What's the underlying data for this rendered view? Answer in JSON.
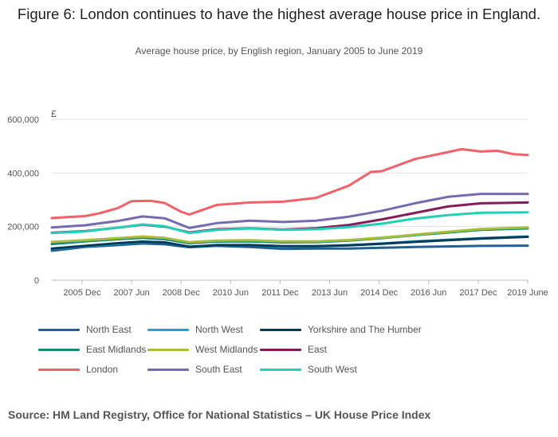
{
  "title": "Figure 6: London continues to have the highest average house price in England.",
  "subtitle": "Average house price, by English region, January 2005 to June 2019",
  "source": "Source: HM Land Registry, Office for National Statistics – UK House Price Index",
  "chart_data": {
    "type": "line",
    "y_unit_label": "£",
    "ylim": [
      0,
      600000
    ],
    "yticks": [
      0,
      200000,
      400000,
      600000
    ],
    "ytick_labels": [
      "0",
      "200,000",
      "400,000",
      "600,000"
    ],
    "xlim": [
      "2005-01",
      "2019-06"
    ],
    "xticks": [
      "2005-12",
      "2007-06",
      "2008-12",
      "2010-06",
      "2011-12",
      "2013-06",
      "2014-12",
      "2016-06",
      "2017-12",
      "2019-06"
    ],
    "xtick_labels": [
      "2005 Dec",
      "2007 Jun",
      "2008 Dec",
      "2010 Jun",
      "2011 Dec",
      "2013 Jun",
      "2014 Dec",
      "2016 Jun",
      "2017 Dec",
      "2019 June"
    ],
    "grid": true,
    "legend_position": "bottom",
    "series": [
      {
        "name": "North East",
        "color": "#206095",
        "x": [
          "2005-01",
          "2006-01",
          "2007-01",
          "2007-10",
          "2008-06",
          "2009-03",
          "2010-01",
          "2011-01",
          "2012-01",
          "2013-01",
          "2014-01",
          "2015-01",
          "2016-01",
          "2017-01",
          "2018-01",
          "2019-06"
        ],
        "values": [
          110000,
          124000,
          131000,
          137000,
          134000,
          123000,
          128000,
          124000,
          117000,
          118000,
          118000,
          121000,
          124000,
          126000,
          128000,
          129000
        ]
      },
      {
        "name": "North West",
        "color": "#27a0cc",
        "x": [
          "2005-01",
          "2006-01",
          "2007-01",
          "2007-10",
          "2008-06",
          "2009-03",
          "2010-01",
          "2011-01",
          "2012-01",
          "2013-01",
          "2014-01",
          "2015-01",
          "2016-01",
          "2017-01",
          "2018-01",
          "2019-06"
        ],
        "values": [
          117000,
          126000,
          136000,
          143000,
          141000,
          124000,
          130000,
          131000,
          127000,
          127000,
          131000,
          137000,
          145000,
          151000,
          157000,
          163000
        ]
      },
      {
        "name": "Yorkshire and The Humber",
        "color": "#003c57",
        "x": [
          "2005-01",
          "2006-01",
          "2007-01",
          "2007-10",
          "2008-06",
          "2009-03",
          "2010-01",
          "2011-01",
          "2012-01",
          "2013-01",
          "2014-01",
          "2015-01",
          "2016-01",
          "2017-01",
          "2018-01",
          "2019-06"
        ],
        "values": [
          118000,
          128000,
          138000,
          144000,
          141000,
          125000,
          131000,
          131000,
          127000,
          127000,
          130000,
          136000,
          143000,
          149000,
          155000,
          162000
        ]
      },
      {
        "name": "East Midlands",
        "color": "#118c7b",
        "x": [
          "2005-01",
          "2006-01",
          "2007-01",
          "2007-10",
          "2008-06",
          "2009-03",
          "2010-01",
          "2011-01",
          "2012-01",
          "2013-01",
          "2014-01",
          "2015-01",
          "2016-01",
          "2017-01",
          "2018-01",
          "2019-06"
        ],
        "values": [
          135000,
          145000,
          153000,
          158000,
          153000,
          138000,
          144000,
          145000,
          141000,
          142000,
          148000,
          157000,
          168000,
          178000,
          188000,
          193000
        ]
      },
      {
        "name": "West Midlands",
        "color": "#a8bd3a",
        "x": [
          "2005-01",
          "2006-01",
          "2007-01",
          "2007-10",
          "2008-06",
          "2009-03",
          "2010-01",
          "2011-01",
          "2012-01",
          "2013-01",
          "2014-01",
          "2015-01",
          "2016-01",
          "2017-01",
          "2018-01",
          "2019-06"
        ],
        "values": [
          143000,
          149000,
          157000,
          163000,
          158000,
          142000,
          148000,
          149000,
          145000,
          145000,
          150000,
          159000,
          170000,
          181000,
          191000,
          197000
        ]
      },
      {
        "name": "East",
        "color": "#871a5b",
        "x": [
          "2005-01",
          "2006-01",
          "2007-01",
          "2007-10",
          "2008-06",
          "2009-03",
          "2010-01",
          "2011-01",
          "2012-01",
          "2013-01",
          "2014-01",
          "2015-01",
          "2016-01",
          "2017-01",
          "2018-01",
          "2019-06"
        ],
        "values": [
          177000,
          183000,
          196000,
          207000,
          200000,
          178000,
          190000,
          194000,
          189000,
          194000,
          206000,
          227000,
          251000,
          275000,
          287000,
          290000
        ]
      },
      {
        "name": "London",
        "color": "#f66068",
        "x": [
          "2005-01",
          "2006-01",
          "2006-06",
          "2007-01",
          "2007-06",
          "2008-01",
          "2008-06",
          "2008-12",
          "2009-03",
          "2010-01",
          "2011-01",
          "2012-01",
          "2013-01",
          "2014-01",
          "2014-09",
          "2015-01",
          "2016-01",
          "2017-01",
          "2017-06",
          "2018-01",
          "2018-07",
          "2019-01",
          "2019-06"
        ],
        "values": [
          232000,
          239000,
          249000,
          269000,
          295000,
          296000,
          288000,
          255000,
          245000,
          281000,
          290000,
          293000,
          307000,
          353000,
          404000,
          407000,
          452000,
          478000,
          489000,
          480000,
          483000,
          470000,
          467000
        ]
      },
      {
        "name": "South East",
        "color": "#746cb1",
        "x": [
          "2005-01",
          "2006-01",
          "2007-01",
          "2007-10",
          "2008-06",
          "2009-03",
          "2010-01",
          "2011-01",
          "2012-01",
          "2013-01",
          "2014-01",
          "2015-01",
          "2016-01",
          "2017-01",
          "2018-01",
          "2019-06"
        ],
        "values": [
          197000,
          205000,
          221000,
          238000,
          231000,
          195000,
          213000,
          222000,
          217000,
          222000,
          237000,
          259000,
          287000,
          311000,
          322000,
          322000
        ]
      },
      {
        "name": "South West",
        "color": "#22d0b6",
        "x": [
          "2005-01",
          "2006-01",
          "2007-01",
          "2007-10",
          "2008-06",
          "2009-03",
          "2010-01",
          "2011-01",
          "2012-01",
          "2013-01",
          "2014-01",
          "2015-01",
          "2016-01",
          "2017-01",
          "2018-01",
          "2019-06"
        ],
        "values": [
          176000,
          182000,
          196000,
          208000,
          201000,
          176000,
          188000,
          193000,
          188000,
          190000,
          198000,
          211000,
          230000,
          243000,
          252000,
          253000
        ]
      }
    ]
  }
}
